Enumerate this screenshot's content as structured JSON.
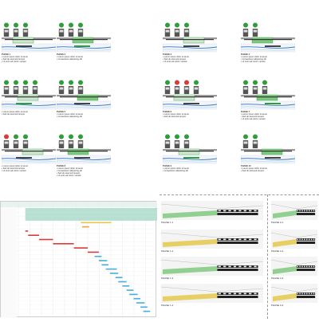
{
  "colors": {
    "green": "#2e9e3a",
    "green_light": "#7fc97f",
    "red": "#d93a3a",
    "blue": "#3a78c8",
    "blue_light": "#bcd6ef",
    "grey": "#8a8a8a",
    "orange": "#e8a53a",
    "yellow": "#e5c84a",
    "cyan": "#44aee0",
    "teal_band": "#b7e0d3"
  },
  "panels": [
    {
      "caption": "PHASE 1",
      "lines": [
        "• Lorem ipsum dolor sit amet",
        "• Sed do eiusmod tempor",
        "• Ut enim ad minim veniam"
      ],
      "icons": [
        "ok",
        "ok",
        "ok"
      ]
    },
    {
      "caption": "PHASE 2",
      "lines": [
        "• Lorem ipsum dolor sit amet",
        "• Consectetur adipiscing elit"
      ],
      "icons": [
        "ok",
        "ok",
        "ok"
      ]
    },
    {
      "caption": "PHASE 3",
      "lines": [
        "• Lorem ipsum dolor sit amet",
        "• Sed do eiusmod tempor",
        "• Ut enim ad minim veniam"
      ],
      "icons": [
        "ok",
        "ok",
        "ok"
      ]
    },
    {
      "caption": "PHASE 4",
      "lines": [
        "• Lorem ipsum dolor sit amet",
        "• Consectetur adipiscing elit",
        "• Ut enim ad minim veniam"
      ],
      "icons": [
        "ok",
        "ok"
      ]
    },
    {
      "caption": "",
      "lines": [
        "• Lorem ipsum dolor sit amet",
        "• Sed do eiusmod tempor"
      ],
      "icons": [
        "ok",
        "ok",
        "ok",
        "ok"
      ]
    },
    {
      "caption": "PHASE 5",
      "lines": [
        "• Lorem ipsum dolor sit amet",
        "• Consectetur adipiscing elit"
      ],
      "icons": [
        "ok",
        "ok",
        "ok"
      ]
    },
    {
      "caption": "PHASE 6",
      "lines": [
        "• Lorem ipsum dolor sit amet",
        "• Sed do eiusmod tempor"
      ],
      "icons": [
        "ok",
        "x",
        "x",
        "ok"
      ]
    },
    {
      "caption": "PHASE 7",
      "lines": [
        "• Lorem ipsum dolor sit amet",
        "• Sed do eiusmod tempor",
        "• Ut enim ad minim veniam"
      ],
      "icons": [
        "ok",
        "ok",
        "ok"
      ]
    },
    {
      "caption": "",
      "lines": [
        "• Lorem ipsum dolor sit amet",
        "• Sed do eiusmod tempor",
        "• Ut enim ad minim veniam"
      ],
      "icons": [
        "x",
        "ok",
        "ok"
      ]
    },
    {
      "caption": "PHASE 8",
      "lines": [
        "• Lorem ipsum dolor sit amet",
        "• Consectetur adipiscing elit",
        "• Sed do eiusmod tempor",
        "• Ut enim ad minim veniam"
      ],
      "icons": [
        "ok",
        "ok",
        "ok"
      ]
    },
    {
      "caption": "PHASE 9",
      "lines": [
        "• Lorem ipsum dolor sit amet",
        "• Consectetur adipiscing elit"
      ],
      "icons": [
        "ok",
        "ok",
        "ok"
      ]
    },
    {
      "caption": "PHASE 10",
      "lines": [
        "• Lorem ipsum dolor sit amet",
        "• Sed do eiusmod tempor"
      ],
      "icons": [
        "ok",
        "ok"
      ]
    }
  ],
  "alt_phases": [
    {
      "label": "PHASE 1.1"
    },
    {
      "label": "PHASE 1.2"
    },
    {
      "label": "PHASE 1.3"
    },
    {
      "label": "PHASE 1.4"
    },
    {
      "label": "PHASE A.1"
    },
    {
      "label": "PHASE A.2"
    },
    {
      "label": "PHASE A.3"
    },
    {
      "label": "PHASE A.4"
    }
  ],
  "gantt": {
    "bars": [
      {
        "row": 0,
        "start": 0.05,
        "len": 0.95,
        "color": "green_band"
      },
      {
        "row": 1,
        "start": 0.05,
        "len": 0.95,
        "color": "green_band"
      },
      {
        "row": 2,
        "start": 0.05,
        "len": 0.95,
        "color": "green_band"
      },
      {
        "row": 3,
        "start": 0.45,
        "len": 0.22,
        "color": "yellow"
      },
      {
        "row": 4,
        "start": 0.46,
        "len": 0.05,
        "color": "orange"
      },
      {
        "row": 5,
        "start": 0.05,
        "len": 0.02,
        "color": "red"
      },
      {
        "row": 6,
        "start": 0.07,
        "len": 0.08,
        "color": "red"
      },
      {
        "row": 7,
        "start": 0.15,
        "len": 0.1,
        "color": "red"
      },
      {
        "row": 8,
        "start": 0.25,
        "len": 0.15,
        "color": "red"
      },
      {
        "row": 9,
        "start": 0.4,
        "len": 0.1,
        "color": "red"
      },
      {
        "row": 10,
        "start": 0.5,
        "len": 0.08,
        "color": "red"
      },
      {
        "row": 11,
        "start": 0.55,
        "len": 0.05,
        "color": "cyan"
      },
      {
        "row": 12,
        "start": 0.58,
        "len": 0.06,
        "color": "cyan"
      },
      {
        "row": 13,
        "start": 0.6,
        "len": 0.05,
        "color": "cyan"
      },
      {
        "row": 14,
        "start": 0.63,
        "len": 0.08,
        "color": "cyan"
      },
      {
        "row": 15,
        "start": 0.66,
        "len": 0.06,
        "color": "cyan"
      },
      {
        "row": 16,
        "start": 0.7,
        "len": 0.05,
        "color": "cyan"
      },
      {
        "row": 17,
        "start": 0.72,
        "len": 0.06,
        "color": "cyan"
      },
      {
        "row": 18,
        "start": 0.75,
        "len": 0.05,
        "color": "cyan"
      },
      {
        "row": 19,
        "start": 0.78,
        "len": 0.05,
        "color": "cyan"
      },
      {
        "row": 20,
        "start": 0.8,
        "len": 0.06,
        "color": "cyan"
      },
      {
        "row": 21,
        "start": 0.83,
        "len": 0.05,
        "color": "cyan"
      },
      {
        "row": 22,
        "start": 0.85,
        "len": 0.06,
        "color": "cyan"
      },
      {
        "row": 23,
        "start": 0.88,
        "len": 0.05,
        "color": "cyan"
      },
      {
        "row": 24,
        "start": 0.9,
        "len": 0.05,
        "color": "cyan"
      }
    ]
  }
}
